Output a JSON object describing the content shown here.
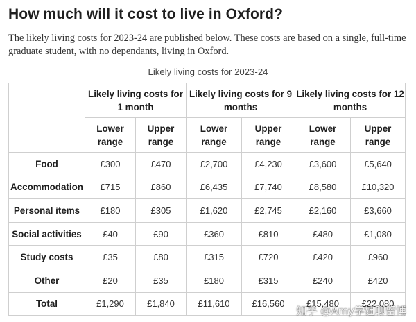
{
  "page": {
    "title": "How much will it cost to live in Oxford?",
    "intro": "The likely living costs for 2023-24 are published below. These costs are based on a single, full-time graduate student, with no dependants, living in Oxford.",
    "caption": "Likely living costs for 2023-24"
  },
  "table": {
    "group_headers": [
      "Likely living costs for 1 month",
      "Likely living costs for 9 months",
      "Likely living costs for 12 months"
    ],
    "sub_headers": [
      "Lower range",
      "Upper range",
      "Lower range",
      "Upper range",
      "Lower range",
      "Upper range"
    ],
    "rows": [
      {
        "label": "Food",
        "values": [
          "£300",
          "£470",
          "£2,700",
          "£4,230",
          "£3,600",
          "£5,640"
        ]
      },
      {
        "label": "Accommodation",
        "values": [
          "£715",
          "£860",
          "£6,435",
          "£7,740",
          "£8,580",
          "£10,320"
        ]
      },
      {
        "label": "Personal items",
        "values": [
          "£180",
          "£305",
          "£1,620",
          "£2,745",
          "£2,160",
          "£3,660"
        ]
      },
      {
        "label": "Social activities",
        "values": [
          "£40",
          "£90",
          "£360",
          "£810",
          "£480",
          "£1,080"
        ]
      },
      {
        "label": "Study costs",
        "values": [
          "£35",
          "£80",
          "£315",
          "£720",
          "£420",
          "£960"
        ]
      },
      {
        "label": "Other",
        "values": [
          "£20",
          "£35",
          "£180",
          "£315",
          "£240",
          "£420"
        ]
      },
      {
        "label": "Total",
        "values": [
          "£1,290",
          "£1,840",
          "£11,610",
          "£16,560",
          "£15,480",
          "£22,080"
        ]
      }
    ]
  },
  "watermark": "知乎 @Amy学姐聊留博"
}
